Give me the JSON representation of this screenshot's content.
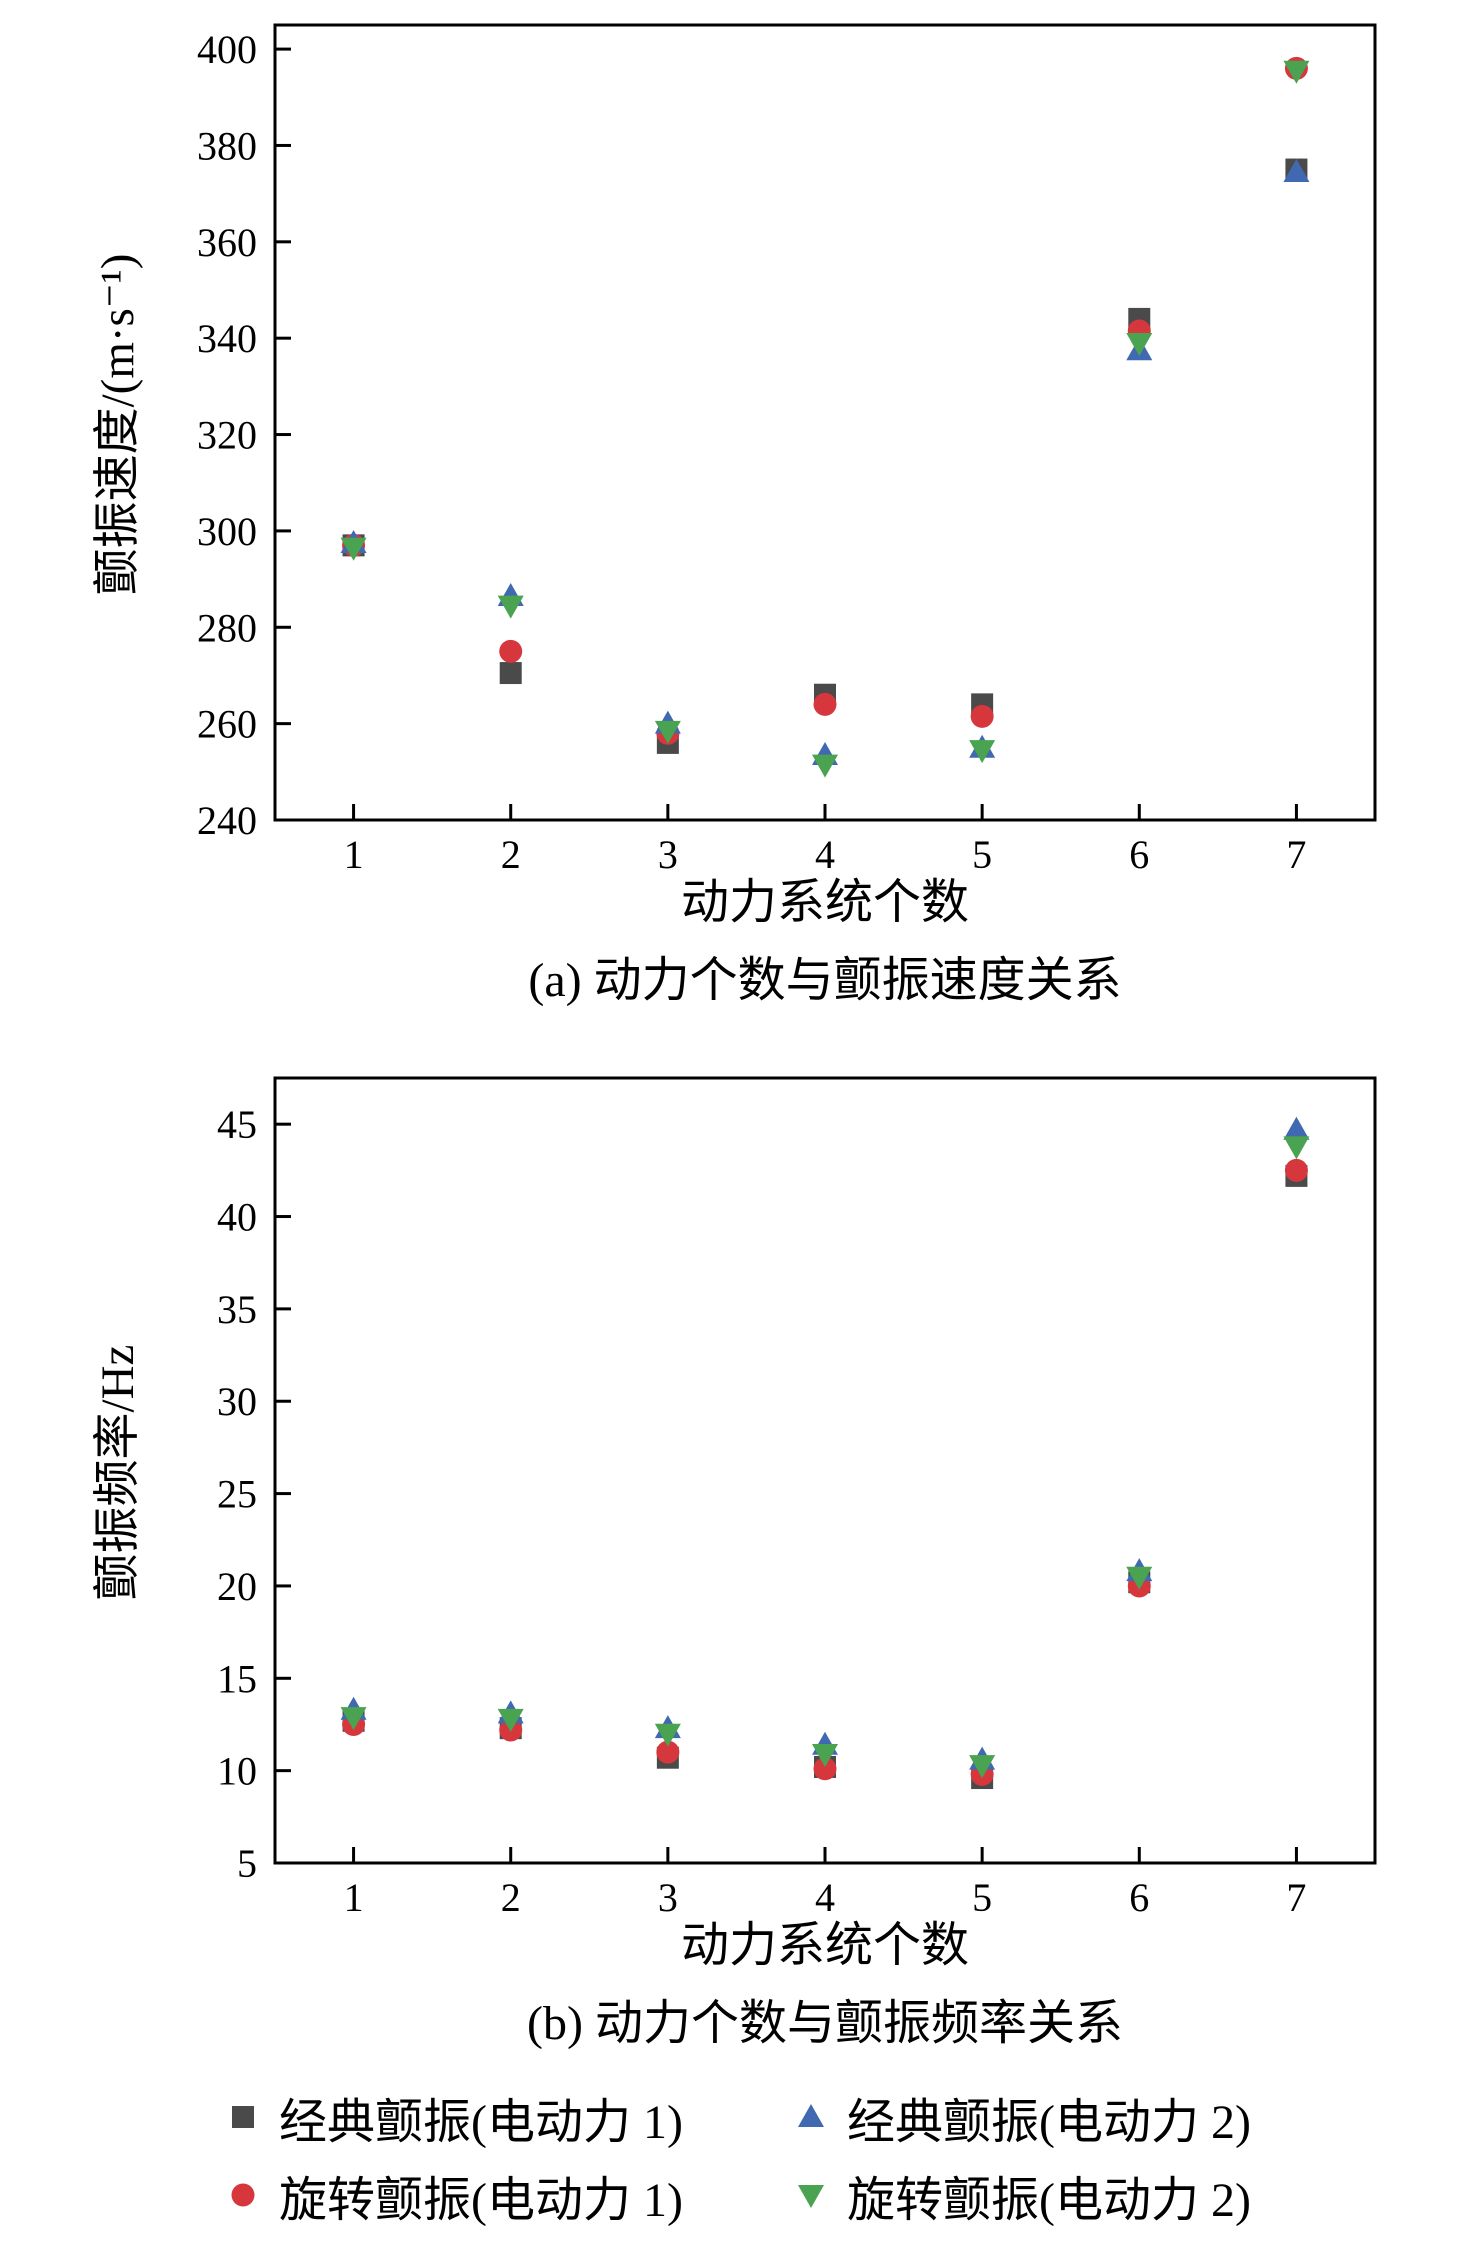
{
  "page": {
    "background": "#ffffff"
  },
  "chart_data": [
    {
      "type": "scatter",
      "caption": "(a) 动力个数与颤振速度关系",
      "xlabel": "动力系统个数",
      "ylabel": "颤振速度/(m·s⁻¹)",
      "x": [
        1,
        2,
        3,
        4,
        5,
        6,
        7
      ],
      "xlim": [
        0.5,
        7.5
      ],
      "ylim": [
        240,
        405
      ],
      "yticks": [
        240,
        260,
        280,
        300,
        320,
        340,
        360,
        380,
        400
      ],
      "grid": false,
      "series": [
        {
          "name": "经典颤振(电动力 1)",
          "marker": "square",
          "color": "#4a4a4a",
          "values": [
            297.0,
            270.5,
            256.0,
            266.0,
            264.0,
            344.0,
            375.0
          ]
        },
        {
          "name": "旋转颤振(电动力 1)",
          "marker": "circle",
          "color": "#d6373d",
          "values": [
            297.0,
            275.0,
            258.0,
            264.0,
            261.5,
            341.5,
            396.0
          ]
        },
        {
          "name": "经典颤振(电动力 2)",
          "marker": "triangle-up",
          "color": "#4169b1",
          "values": [
            297.5,
            286.5,
            260.0,
            253.5,
            255.0,
            337.5,
            374.5
          ]
        },
        {
          "name": "旋转颤振(电动力 2)",
          "marker": "triangle-down",
          "color": "#4aa350",
          "values": [
            296.5,
            284.5,
            258.5,
            251.5,
            254.5,
            339.0,
            395.5
          ]
        }
      ]
    },
    {
      "type": "scatter",
      "caption": "(b) 动力个数与颤振频率关系",
      "xlabel": "动力系统个数",
      "ylabel": "颤振频率/Hz",
      "x": [
        1,
        2,
        3,
        4,
        5,
        6,
        7
      ],
      "xlim": [
        0.5,
        7.5
      ],
      "ylim": [
        5,
        47.5
      ],
      "yticks": [
        5,
        10,
        15,
        20,
        25,
        30,
        35,
        40,
        45
      ],
      "grid": false,
      "series": [
        {
          "name": "经典颤振(电动力 1)",
          "marker": "square",
          "color": "#4a4a4a",
          "values": [
            12.7,
            12.3,
            10.7,
            10.2,
            9.6,
            20.2,
            42.2
          ]
        },
        {
          "name": "旋转颤振(电动力 1)",
          "marker": "circle",
          "color": "#d6373d",
          "values": [
            12.5,
            12.2,
            11.0,
            10.1,
            9.8,
            20.0,
            42.5
          ]
        },
        {
          "name": "经典颤振(电动力 2)",
          "marker": "triangle-up",
          "color": "#4169b1",
          "values": [
            13.3,
            13.1,
            12.3,
            11.4,
            10.6,
            20.8,
            44.7
          ]
        },
        {
          "name": "旋转颤振(电动力 2)",
          "marker": "triangle-down",
          "color": "#4aa350",
          "values": [
            12.9,
            12.8,
            12.0,
            10.9,
            10.3,
            20.5,
            43.8
          ]
        }
      ]
    }
  ]
}
